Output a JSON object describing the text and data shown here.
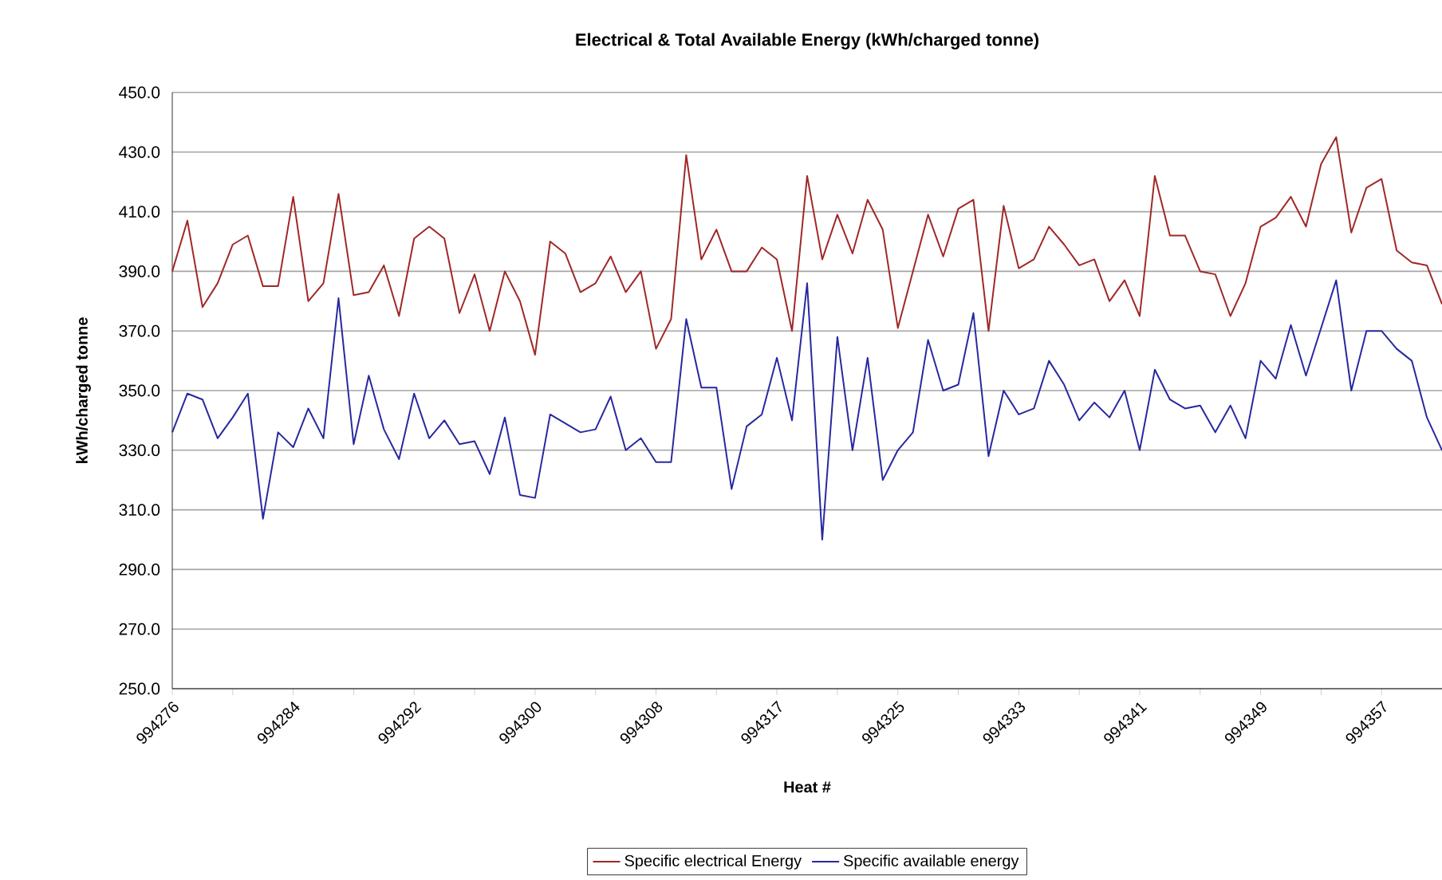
{
  "chart_data": {
    "type": "line",
    "title": "Electrical & Total Available Energy (kWh/charged tonne)",
    "xlabel": "Heat #",
    "ylabel": "kWh/charged tonne",
    "categories": [
      "994276",
      null,
      null,
      null,
      null,
      null,
      null,
      null,
      "994284",
      null,
      null,
      null,
      null,
      null,
      null,
      null,
      "994292",
      null,
      null,
      null,
      null,
      null,
      null,
      null,
      "994300",
      null,
      null,
      null,
      null,
      null,
      null,
      null,
      "994308",
      null,
      null,
      null,
      null,
      null,
      null,
      null,
      "994317",
      null,
      null,
      null,
      null,
      null,
      null,
      null,
      "994325",
      null,
      null,
      null,
      null,
      null,
      null,
      null,
      "994333",
      null,
      null,
      null,
      null,
      null,
      null,
      null,
      "994341",
      null,
      null,
      null,
      null,
      null,
      null,
      null,
      "994349",
      null,
      null,
      null,
      null,
      null,
      null,
      null,
      "994357",
      null,
      null,
      null,
      null
    ],
    "series": [
      {
        "name": "Specific electrical Energy",
        "color": "#a02828",
        "values": [
          390,
          407,
          378,
          386,
          399,
          402,
          385,
          385,
          415,
          380,
          386,
          416,
          382,
          383,
          392,
          375,
          401,
          405,
          401,
          376,
          389,
          370,
          390,
          380,
          362,
          400,
          396,
          383,
          386,
          395,
          383,
          390,
          364,
          374,
          429,
          394,
          404,
          390,
          390,
          398,
          394,
          370,
          422,
          394,
          409,
          396,
          414,
          404,
          371,
          390,
          409,
          395,
          411,
          414,
          370,
          412,
          391,
          394,
          405,
          399,
          392,
          394,
          380,
          387,
          375,
          422,
          402,
          402,
          390,
          389,
          375,
          386,
          405,
          408,
          415,
          405,
          426,
          435,
          403,
          418,
          421,
          397,
          393,
          392,
          379
        ]
      },
      {
        "name": "Specific available energy",
        "color": "#2828a0",
        "values": [
          336,
          349,
          347,
          334,
          341,
          349,
          307,
          336,
          331,
          344,
          334,
          381,
          332,
          355,
          337,
          327,
          349,
          334,
          340,
          332,
          333,
          322,
          341,
          315,
          314,
          342,
          339,
          336,
          337,
          348,
          330,
          334,
          326,
          326,
          374,
          351,
          351,
          317,
          338,
          342,
          361,
          340,
          386,
          300,
          368,
          330,
          361,
          320,
          330,
          336,
          367,
          350,
          352,
          376,
          328,
          350,
          342,
          344,
          360,
          352,
          340,
          346,
          341,
          350,
          330,
          357,
          347,
          344,
          345,
          336,
          345,
          334,
          360,
          354,
          372,
          355,
          371,
          387,
          350,
          370,
          370,
          364,
          360,
          341,
          330
        ]
      }
    ],
    "yticks": [
      {
        "value": 250,
        "label": "250.0"
      },
      {
        "value": 270,
        "label": "270.0"
      },
      {
        "value": 290,
        "label": "290.0"
      },
      {
        "value": 310,
        "label": "310.0"
      },
      {
        "value": 330,
        "label": "330.0"
      },
      {
        "value": 350,
        "label": "350.0"
      },
      {
        "value": 370,
        "label": "370.0"
      },
      {
        "value": 390,
        "label": "390.0"
      },
      {
        "value": 410,
        "label": "410.0"
      },
      {
        "value": 430,
        "label": "430.0"
      },
      {
        "value": 450,
        "label": "450.0"
      }
    ],
    "ylim": [
      250,
      450
    ],
    "grid": "y",
    "legend": "bottom",
    "marker": "none",
    "line_style": "solid"
  }
}
